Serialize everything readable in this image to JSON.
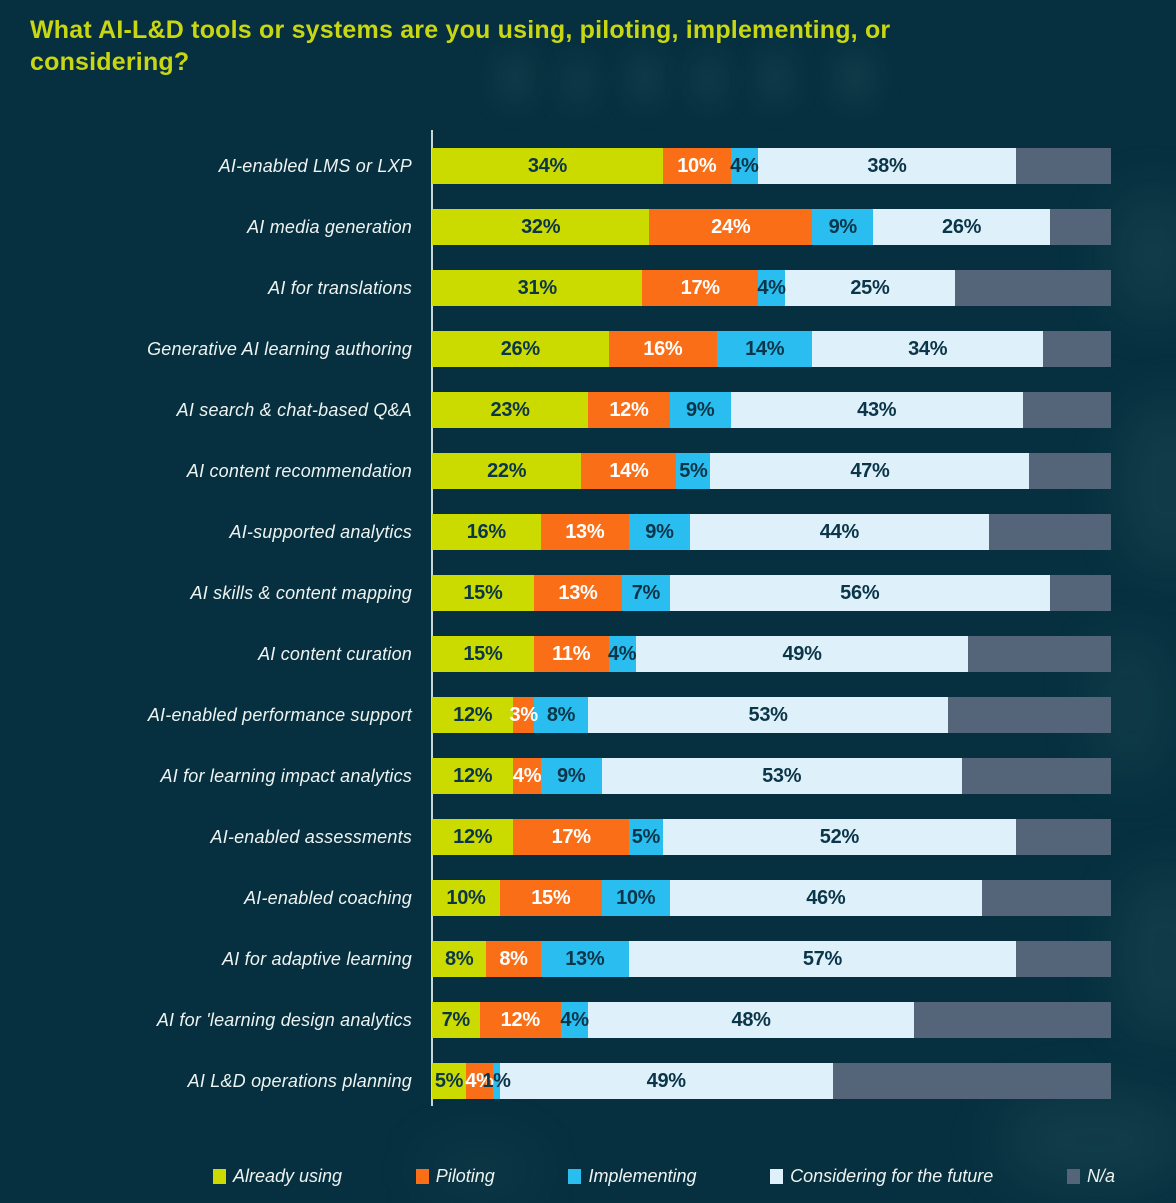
{
  "header": {
    "title": "What AI-L&D tools or systems are you using, piloting, implementing, or considering?"
  },
  "colors": {
    "background": "#06303f",
    "title": "#c9d712",
    "axis": "#ebf3f5",
    "label_text": "#eef3f1",
    "dark_value_text": "#0b3548",
    "white_value_text": "#ffffff"
  },
  "chart_data": {
    "type": "bar",
    "stacked": true,
    "orientation": "horizontal",
    "unit": "%",
    "xlim": [
      0,
      100
    ],
    "grid": false,
    "legend_position": "bottom",
    "title": "What AI-L&D tools or systems are you using, piloting, implementing, or considering?",
    "series": [
      {
        "name": "Already using",
        "color": "#cbdb00",
        "label_color": "#0b3548",
        "show_labels": true
      },
      {
        "name": "Piloting",
        "color": "#f96e17",
        "label_color": "#ffffff",
        "show_labels": true
      },
      {
        "name": "Implementing",
        "color": "#29bdf0",
        "label_color": "#0b3548",
        "show_labels": true
      },
      {
        "name": "Considering for the future",
        "color": "#def1fb",
        "label_color": "#0b3548",
        "show_labels": true
      },
      {
        "name": "N/a",
        "color": "#546579",
        "label_color": "#0b3548",
        "show_labels": false
      }
    ],
    "categories": [
      "AI-enabled LMS or LXP",
      "AI media generation",
      "AI for translations",
      "Generative AI learning authoring",
      "AI search & chat-based Q&A",
      "AI content recommendation",
      "AI-supported analytics",
      "AI skills & content mapping",
      "AI content curation",
      "AI-enabled performance support",
      "AI for learning impact analytics",
      "AI-enabled assessments",
      "AI-enabled coaching",
      "AI for adaptive learning",
      "AI for 'learning design analytics",
      "AI L&D operations planning"
    ],
    "rows": [
      {
        "category": "AI-enabled LMS or LXP",
        "values": [
          34,
          10,
          4,
          38,
          14
        ]
      },
      {
        "category": "AI media generation",
        "values": [
          32,
          24,
          9,
          26,
          9
        ]
      },
      {
        "category": "AI for translations",
        "values": [
          31,
          17,
          4,
          25,
          23
        ]
      },
      {
        "category": "Generative AI learning authoring",
        "values": [
          26,
          16,
          14,
          34,
          10
        ]
      },
      {
        "category": "AI search & chat-based Q&A",
        "values": [
          23,
          12,
          9,
          43,
          13
        ]
      },
      {
        "category": "AI content recommendation",
        "values": [
          22,
          14,
          5,
          47,
          12
        ]
      },
      {
        "category": "AI-supported analytics",
        "values": [
          16,
          13,
          9,
          44,
          18
        ]
      },
      {
        "category": "AI skills & content mapping",
        "values": [
          15,
          13,
          7,
          56,
          9
        ]
      },
      {
        "category": "AI content curation",
        "values": [
          15,
          11,
          4,
          49,
          21
        ]
      },
      {
        "category": "AI-enabled performance support",
        "values": [
          12,
          3,
          8,
          53,
          24
        ]
      },
      {
        "category": "AI for learning impact analytics",
        "values": [
          12,
          4,
          9,
          53,
          22
        ]
      },
      {
        "category": "AI-enabled assessments",
        "values": [
          12,
          17,
          5,
          52,
          14
        ]
      },
      {
        "category": "AI-enabled coaching",
        "values": [
          10,
          15,
          10,
          46,
          19
        ]
      },
      {
        "category": "AI for adaptive learning",
        "values": [
          8,
          8,
          13,
          57,
          14
        ]
      },
      {
        "category": "AI for 'learning design analytics",
        "values": [
          7,
          12,
          4,
          48,
          29
        ]
      },
      {
        "category": "AI L&D operations planning",
        "values": [
          5,
          4,
          1,
          49,
          41
        ]
      }
    ]
  },
  "legend": {
    "items": [
      "Already using",
      "Piloting",
      "Implementing",
      "Considering for the future",
      "N/a"
    ]
  }
}
